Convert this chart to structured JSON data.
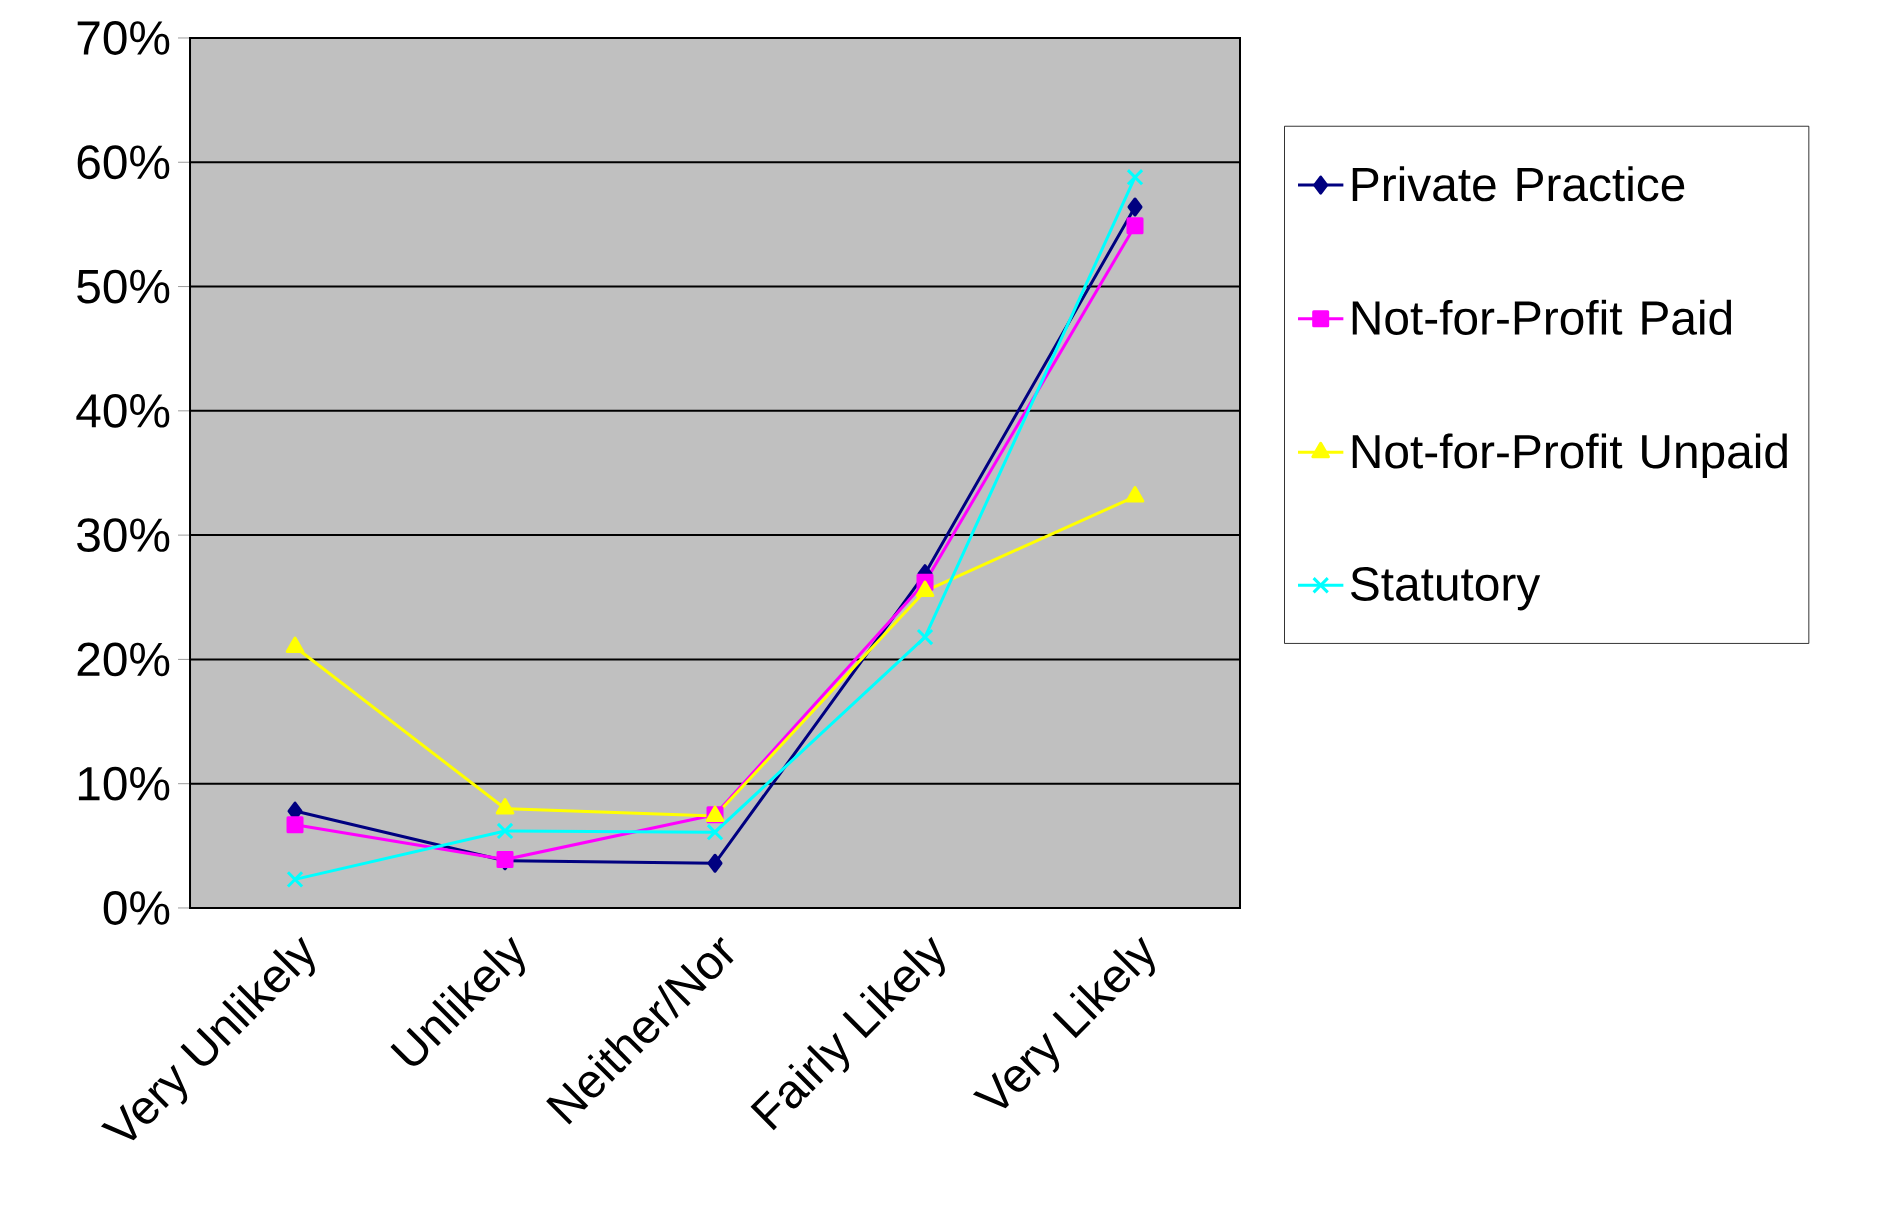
{
  "chart_data": {
    "type": "line",
    "categories": [
      "Very Unlikely",
      "Unlikely",
      "Neither/Nor",
      "Fairly Likely",
      "Very Likely"
    ],
    "series": [
      {
        "name": "Private Practice",
        "color": "#000080",
        "marker": "diamond",
        "values": [
          7.8,
          3.8,
          3.6,
          26.9,
          56.4
        ]
      },
      {
        "name": "Not-for-Profit Paid",
        "color": "#ff00ff",
        "marker": "square",
        "values": [
          6.7,
          3.9,
          7.5,
          26.2,
          54.9
        ]
      },
      {
        "name": "Not-for-Profit Unpaid",
        "color": "#ffff00",
        "marker": "triangle",
        "values": [
          21,
          8.0,
          7.4,
          25.5,
          33.1
        ]
      },
      {
        "name": "Statutory",
        "color": "#00ffff",
        "marker": "cross",
        "values": [
          2.3,
          6.2,
          6.1,
          21.8,
          58.8
        ]
      }
    ],
    "ylim": [
      0,
      70
    ],
    "yticks": [
      {
        "value": 0,
        "label": "0%"
      },
      {
        "value": 10,
        "label": "10%"
      },
      {
        "value": 20,
        "label": "20%"
      },
      {
        "value": 30,
        "label": "30%"
      },
      {
        "value": 40,
        "label": "40%"
      },
      {
        "value": 50,
        "label": "50%"
      },
      {
        "value": 60,
        "label": "60%"
      },
      {
        "value": 70,
        "label": "70%"
      }
    ],
    "grid": "y",
    "legend": "right",
    "line_style": "solid"
  }
}
